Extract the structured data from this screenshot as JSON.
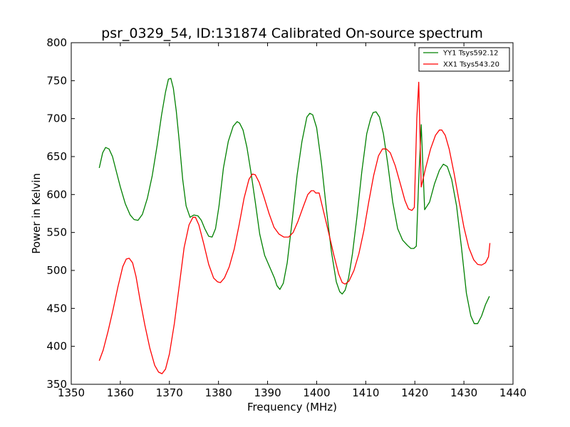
{
  "chart_data": {
    "type": "line",
    "title": "psr_0329_54, ID:131874 Calibrated On-source spectrum",
    "xlabel": "Frequency (MHz)",
    "ylabel": "Power in Kelvin",
    "xlim": [
      1350,
      1440
    ],
    "ylim": [
      350,
      800
    ],
    "xticks": [
      1350,
      1360,
      1370,
      1380,
      1390,
      1400,
      1410,
      1420,
      1430,
      1440
    ],
    "yticks": [
      350,
      400,
      450,
      500,
      550,
      600,
      650,
      700,
      750,
      800
    ],
    "grid": false,
    "legend_position": "top-right",
    "series": [
      {
        "name": "YY1 Tsys592.12",
        "color": "#008000",
        "x": [
          1355.7,
          1356.4,
          1357.0,
          1357.7,
          1358.4,
          1359.0,
          1360.0,
          1361.0,
          1362.0,
          1362.8,
          1363.6,
          1364.5,
          1365.5,
          1366.5,
          1367.5,
          1368.4,
          1369.2,
          1369.8,
          1370.3,
          1370.8,
          1371.4,
          1372.0,
          1372.7,
          1373.4,
          1374.2,
          1375.0,
          1375.8,
          1376.5,
          1377.2,
          1378.0,
          1378.7,
          1379.4,
          1380.1,
          1381.0,
          1382.0,
          1383.0,
          1383.8,
          1384.3,
          1385.0,
          1385.8,
          1386.6,
          1387.5,
          1388.4,
          1389.4,
          1390.4,
          1391.4,
          1391.9,
          1392.5,
          1393.2,
          1394.0,
          1395.0,
          1396.0,
          1397.0,
          1398.0,
          1398.6,
          1399.2,
          1400.0,
          1401.0,
          1402.0,
          1403.0,
          1404.0,
          1404.7,
          1405.2,
          1405.8,
          1406.5,
          1407.3,
          1408.2,
          1409.2,
          1410.2,
          1411.0,
          1411.5,
          1412.1,
          1412.8,
          1413.6,
          1414.5,
          1415.5,
          1416.5,
          1417.5,
          1418.5,
          1419.2,
          1419.8,
          1420.3,
          1420.8,
          1421.3,
          1422.0,
          1423.0,
          1424.0,
          1425.0,
          1425.8,
          1426.6,
          1427.5,
          1428.5,
          1429.5,
          1430.5,
          1431.4,
          1432.1,
          1432.8,
          1433.6,
          1434.4,
          1435.2
        ],
        "values": [
          635,
          655,
          662,
          660,
          650,
          635,
          610,
          588,
          573,
          567,
          566,
          574,
          595,
          625,
          665,
          705,
          735,
          752,
          753,
          740,
          710,
          670,
          620,
          585,
          570,
          573,
          572,
          566,
          555,
          545,
          544,
          555,
          585,
          635,
          670,
          690,
          696,
          694,
          685,
          662,
          630,
          590,
          548,
          520,
          505,
          490,
          480,
          475,
          483,
          510,
          565,
          625,
          670,
          702,
          707,
          705,
          688,
          640,
          580,
          525,
          485,
          472,
          469,
          474,
          490,
          522,
          570,
          630,
          680,
          700,
          708,
          709,
          702,
          680,
          640,
          590,
          555,
          540,
          533,
          529,
          529,
          532,
          620,
          692,
          580,
          590,
          614,
          632,
          640,
          637,
          620,
          585,
          530,
          470,
          440,
          430,
          430,
          440,
          455,
          466
        ]
      },
      {
        "name": "XX1 Tsys543.20",
        "color": "#ff0000",
        "x": [
          1355.7,
          1356.5,
          1357.5,
          1358.5,
          1359.5,
          1360.5,
          1361.2,
          1361.8,
          1362.5,
          1363.2,
          1364.0,
          1365.0,
          1366.0,
          1367.0,
          1367.8,
          1368.5,
          1369.2,
          1370.0,
          1371.0,
          1372.0,
          1373.0,
          1374.0,
          1374.8,
          1375.3,
          1376.0,
          1377.0,
          1378.0,
          1379.0,
          1379.8,
          1380.4,
          1381.2,
          1382.2,
          1383.2,
          1384.2,
          1385.2,
          1386.2,
          1386.9,
          1387.5,
          1388.3,
          1389.3,
          1390.3,
          1391.3,
          1392.3,
          1393.3,
          1394.3,
          1395.2,
          1396.2,
          1397.2,
          1398.2,
          1398.9,
          1399.4,
          1399.8,
          1400.5,
          1401.5,
          1402.5,
          1403.5,
          1404.5,
          1405.2,
          1405.8,
          1406.6,
          1407.6,
          1408.6,
          1409.6,
          1410.6,
          1411.6,
          1412.6,
          1413.4,
          1414.2,
          1415.0,
          1416.0,
          1417.0,
          1418.0,
          1418.7,
          1419.4,
          1419.9,
          1420.4,
          1420.8,
          1421.3,
          1422.2,
          1423.2,
          1424.2,
          1425.0,
          1425.5,
          1426.2,
          1427.0,
          1428.0,
          1429.0,
          1430.0,
          1431.0,
          1432.0,
          1432.8,
          1433.6,
          1434.4,
          1435.0,
          1435.3
        ],
        "values": [
          381,
          395,
          420,
          448,
          478,
          505,
          515,
          516,
          510,
          492,
          462,
          428,
          398,
          375,
          366,
          364,
          370,
          390,
          430,
          480,
          530,
          560,
          570,
          570,
          560,
          535,
          508,
          490,
          485,
          484,
          490,
          505,
          528,
          560,
          595,
          620,
          627,
          626,
          616,
          596,
          575,
          557,
          548,
          544,
          544,
          550,
          565,
          583,
          600,
          605,
          605,
          602,
          602,
          575,
          548,
          520,
          495,
          484,
          482,
          486,
          500,
          522,
          552,
          590,
          625,
          651,
          660,
          660,
          655,
          638,
          615,
          592,
          581,
          579,
          583,
          700,
          748,
          610,
          635,
          660,
          678,
          685,
          685,
          678,
          660,
          628,
          592,
          557,
          530,
          514,
          508,
          507,
          510,
          518,
          536
        ]
      }
    ]
  }
}
